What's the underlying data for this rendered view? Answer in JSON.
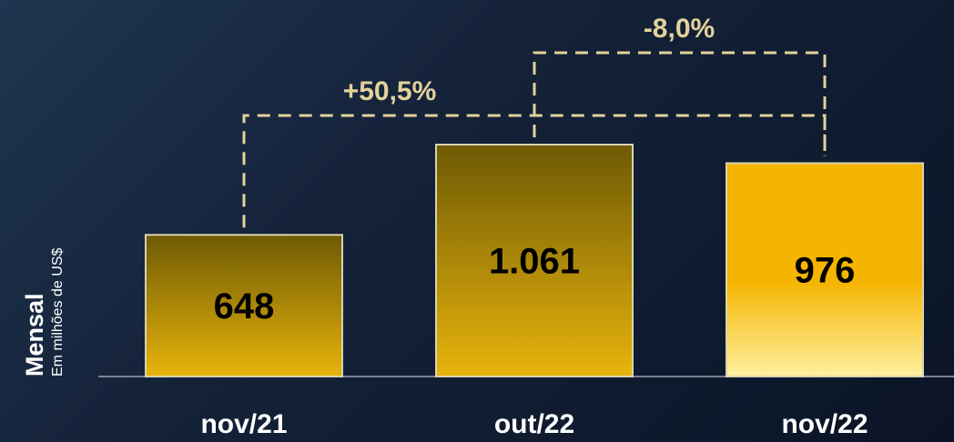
{
  "chart_data": {
    "type": "bar",
    "title": "Mensal",
    "subtitle": "Em milhões de US$",
    "categories": [
      "nov/21",
      "out/22",
      "nov/22"
    ],
    "values": [
      648,
      1061,
      976
    ],
    "value_labels": [
      "648",
      "1.061",
      "976"
    ],
    "comparisons": [
      {
        "from": "nov/21",
        "to": "nov/22",
        "label": "+50,5%"
      },
      {
        "from": "out/22",
        "to": "nov/22",
        "label": "-8,0%"
      }
    ],
    "ylim": [
      0,
      1061
    ],
    "grid": false,
    "legend": "none",
    "colors": {
      "bar_dark_top": "#6e5a05",
      "bar_dark_bottom": "#e8b40c",
      "bar_bright_top": "#f5b400",
      "bar_bright_bottom": "#fff0a0",
      "connector": "#e3d29a",
      "text_on_bar": "#000000",
      "axis_text": "#ffffff"
    }
  }
}
